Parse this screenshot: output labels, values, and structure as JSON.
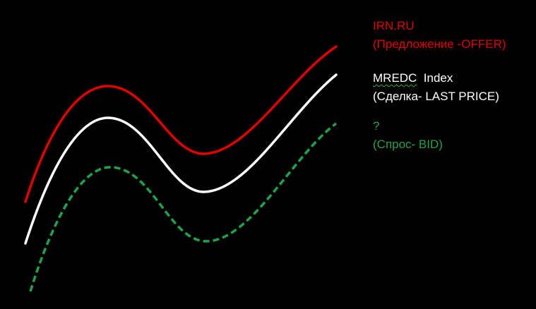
{
  "colors": {
    "background": "#000000",
    "offer": "#e00000",
    "last": "#ffffff",
    "bid": "#1ea34a"
  },
  "legend": {
    "offer": {
      "name": "IRN.RU",
      "desc": "(Предложение -OFFER)"
    },
    "last": {
      "name": "MREDC",
      "suffix": "  Index",
      "desc": "(Сделка- LAST PRICE)"
    },
    "bid": {
      "name": "?",
      "desc": "(Спрос- BID)"
    }
  },
  "curves": [
    {
      "id": "offer",
      "style": "solid"
    },
    {
      "id": "last",
      "style": "solid"
    },
    {
      "id": "bid",
      "style": "dashed"
    }
  ]
}
